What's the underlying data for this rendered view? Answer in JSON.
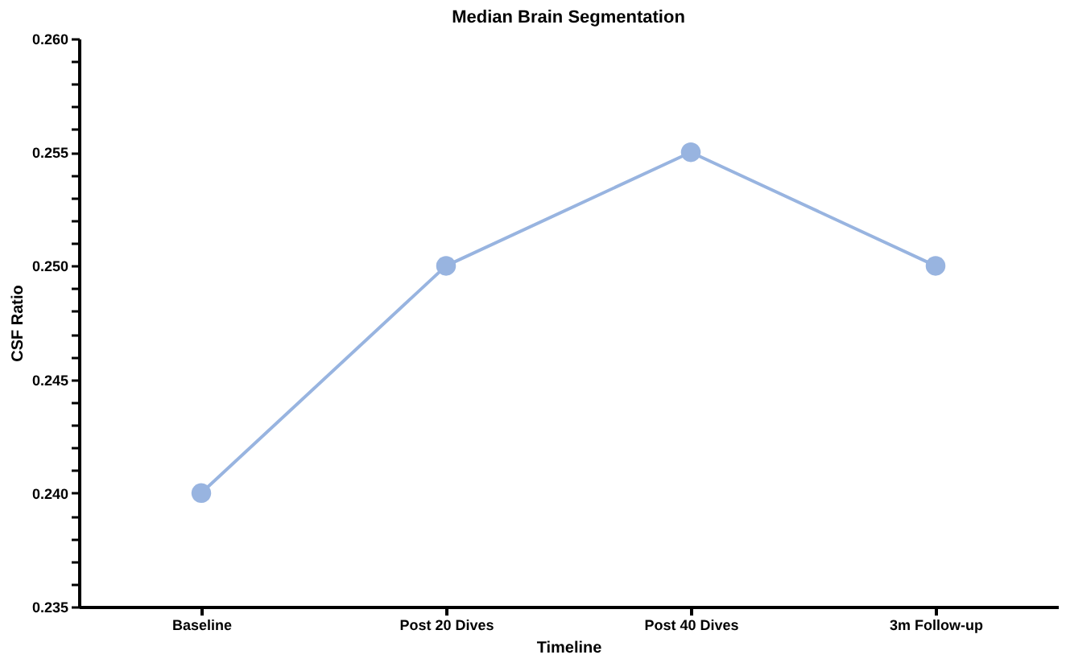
{
  "chart_data": {
    "type": "line",
    "title": "Median Brain Segmentation",
    "xlabel": "Timeline",
    "ylabel": "CSF Ratio",
    "categories": [
      "Baseline",
      "Post 20 Dives",
      "Post 40 Dives",
      "3m Follow-up"
    ],
    "series": [
      {
        "color": "#98b4e0",
        "values": [
          0.24,
          0.25,
          0.255,
          0.25
        ]
      }
    ],
    "ylim": [
      0.235,
      0.26
    ],
    "yticks": [
      "0.235",
      {
        "value": 0.236,
        "label": null
      },
      {
        "value": 0.237,
        "label": null
      },
      {
        "value": 0.238,
        "label": null
      },
      {
        "value": 0.239,
        "label": null
      },
      {
        "value": 0.24,
        "label": "0.240"
      },
      {
        "value": 0.241,
        "label": null
      },
      {
        "value": 0.242,
        "label": null
      },
      {
        "value": 0.243,
        "label": null
      },
      {
        "value": 0.244,
        "label": null
      },
      {
        "value": 0.245,
        "label": "0.245"
      },
      {
        "value": 0.246,
        "label": null
      },
      {
        "value": 0.247,
        "label": null
      },
      {
        "value": 0.248,
        "label": null
      },
      {
        "value": 0.249,
        "label": null
      },
      {
        "value": 0.25,
        "label": "0.250"
      },
      {
        "value": 0.251,
        "label": null
      },
      {
        "value": 0.252,
        "label": null
      },
      {
        "value": 0.253,
        "label": null
      },
      {
        "value": 0.254,
        "label": null
      },
      {
        "value": 0.255,
        "label": "0.255"
      },
      {
        "value": 0.256,
        "label": null
      },
      {
        "value": 0.257,
        "label": null
      },
      {
        "value": 0.258,
        "label": null
      },
      {
        "value": 0.259,
        "label": null
      },
      {
        "value": 0.26,
        "label": "0.260"
      }
    ],
    "marker": "circle",
    "line_style": "solid",
    "grid": false
  }
}
